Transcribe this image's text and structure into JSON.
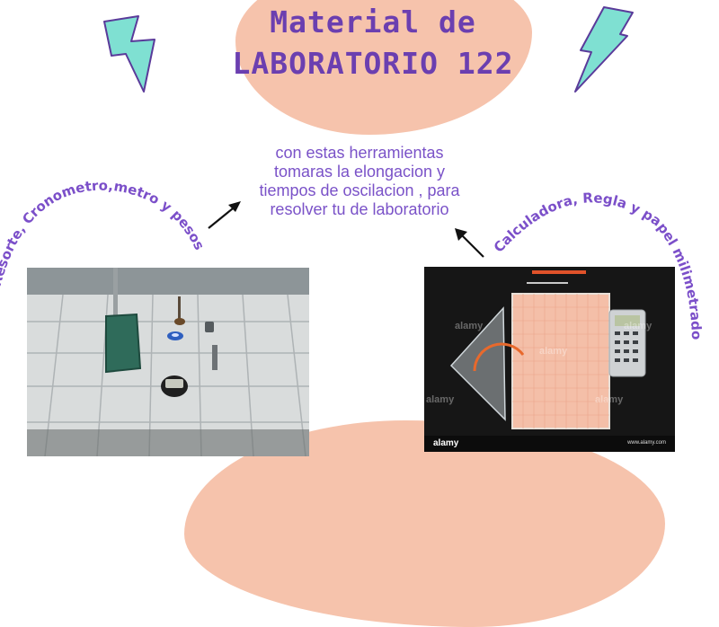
{
  "title": {
    "line1": "Material de",
    "line2": "LABORATORIO 122"
  },
  "center_text": {
    "line1": "con estas herramientas",
    "line2": "tomaras la elongacion  y",
    "line3": "tiempos de oscilacion , para",
    "line4": "resolver tu  de laboratorio"
  },
  "left_arc_text": "Resorte, Cronometro,metro  y pesos",
  "right_arc_text": "Calculadora, Regla y papel milimetrado",
  "right_photo": {
    "watermark": "alamy",
    "footer_brand": "alamy",
    "footer_url": "www.alamy.com"
  },
  "colors": {
    "title": "#6b3fb0",
    "text": "#7a52c8",
    "blob": "#f6c3ac",
    "bolt_fill": "#7fe0d2",
    "bolt_stroke": "#5a3a9a"
  },
  "icons": [
    "lightning-bolt-icon",
    "arrow-icon"
  ]
}
